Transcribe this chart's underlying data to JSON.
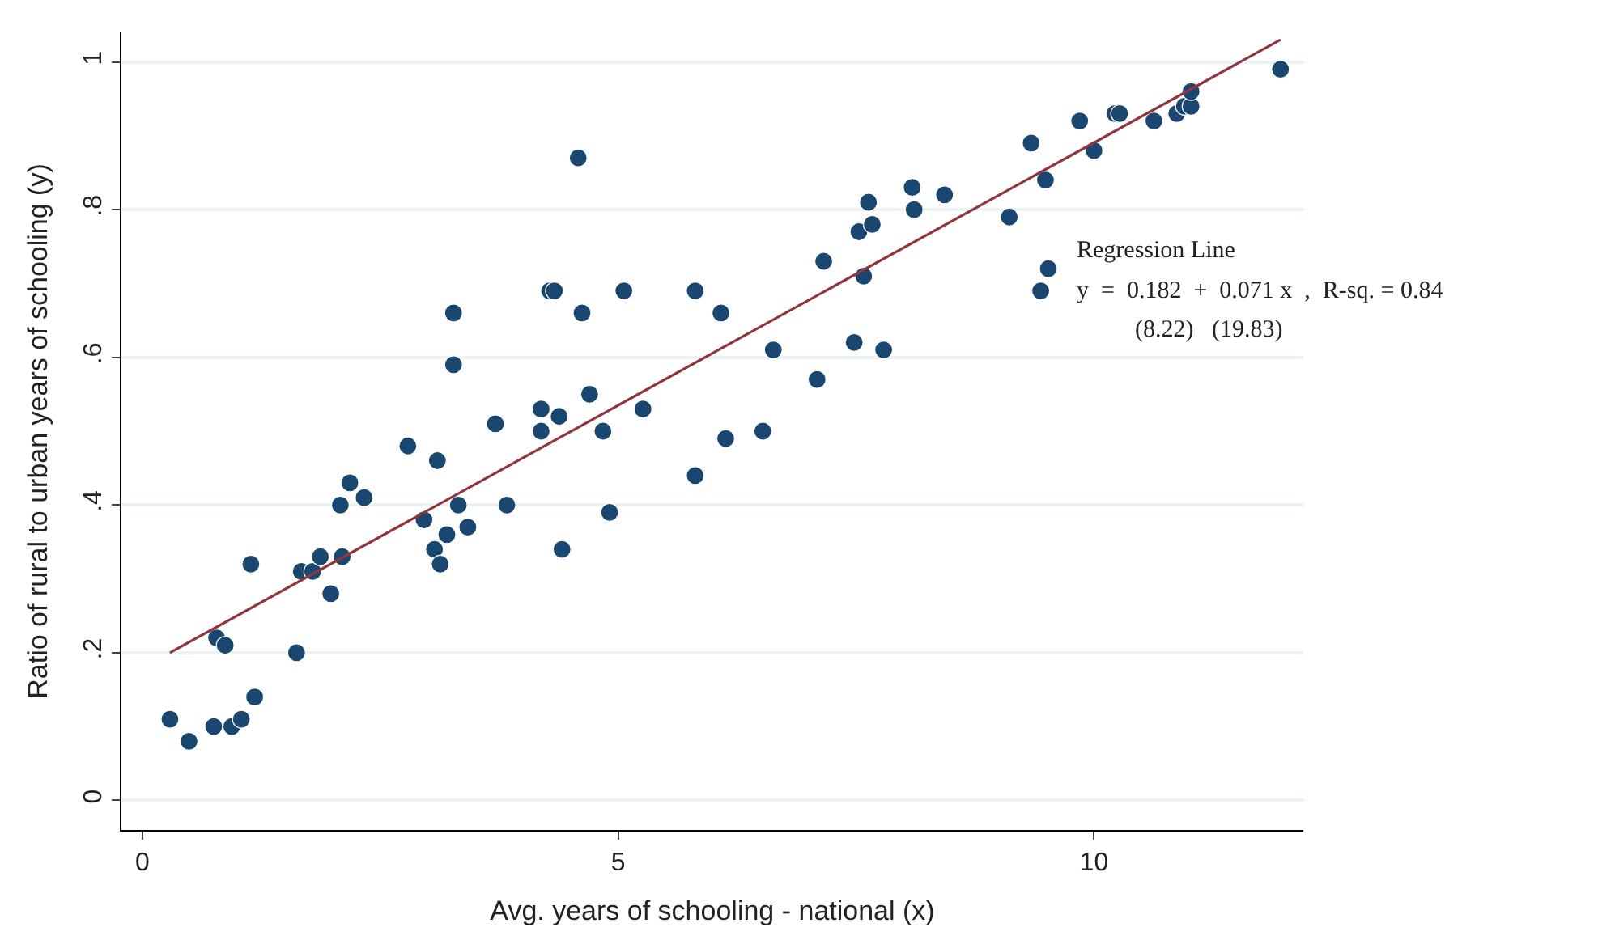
{
  "chart_data": {
    "type": "scatter",
    "xlabel": "Avg. years of schooling - national (x)",
    "ylabel": "Ratio of rural to urban years of schooling (y)",
    "xlim": [
      -0.22,
      12.2
    ],
    "ylim": [
      -0.04,
      1.04
    ],
    "xticks": [
      0,
      5,
      10
    ],
    "yticks": [
      0,
      {
        "value": 0.2,
        "label": ".2"
      },
      {
        "value": 0.4,
        "label": ".4"
      },
      {
        "value": 0.6,
        "label": ".6"
      },
      {
        "value": 0.8,
        "label": ".8"
      },
      1
    ],
    "grid": "y",
    "marker": "circle",
    "annotations": [
      "Regression Line",
      "y  =  0.182  +  0.071 x  ,  R-sq. = 0.84",
      "(8.22)   (19.83)"
    ],
    "series": [
      {
        "color": "#1a476f",
        "x": [
          0.29,
          0.49,
          0.78,
          0.87,
          0.75,
          0.94,
          1.04,
          1.14,
          1.18,
          1.62,
          1.67,
          1.79,
          1.87,
          1.98,
          2.08,
          2.1,
          2.18,
          2.33,
          2.79,
          2.96,
          3.07,
          3.1,
          3.13,
          3.2,
          3.27,
          3.27,
          3.32,
          3.42,
          3.71,
          3.83,
          4.19,
          4.19,
          4.28,
          4.33,
          4.38,
          4.41,
          4.58,
          4.62,
          4.7,
          4.84,
          4.91,
          5.06,
          5.26,
          5.81,
          5.81,
          6.08,
          6.13,
          6.63,
          6.52,
          7.09,
          7.16,
          7.48,
          7.53,
          7.58,
          7.63,
          7.67,
          7.79,
          8.09,
          8.11,
          8.43,
          9.11,
          9.34,
          9.44,
          9.49,
          9.52,
          9.85,
          10.0,
          10.22,
          10.27,
          10.63,
          10.87,
          10.95,
          11.02,
          11.02,
          11.96
        ],
        "values": [
          0.11,
          0.08,
          0.22,
          0.21,
          0.1,
          0.1,
          0.11,
          0.32,
          0.14,
          0.2,
          0.31,
          0.31,
          0.33,
          0.28,
          0.4,
          0.33,
          0.43,
          0.41,
          0.48,
          0.38,
          0.34,
          0.46,
          0.32,
          0.36,
          0.66,
          0.59,
          0.4,
          0.37,
          0.51,
          0.4,
          0.53,
          0.5,
          0.69,
          0.69,
          0.52,
          0.34,
          0.87,
          0.66,
          0.55,
          0.5,
          0.39,
          0.69,
          0.53,
          0.44,
          0.69,
          0.66,
          0.49,
          0.61,
          0.5,
          0.57,
          0.73,
          0.62,
          0.77,
          0.71,
          0.81,
          0.78,
          0.61,
          0.83,
          0.8,
          0.82,
          0.79,
          0.89,
          0.69,
          0.84,
          0.72,
          0.92,
          0.88,
          0.93,
          0.93,
          0.92,
          0.93,
          0.94,
          0.94,
          0.96,
          0.99
        ]
      },
      {
        "type": "line",
        "color": "#90353b",
        "x": [
          0.29,
          11.96
        ],
        "values": [
          0.2,
          1.03
        ],
        "marker": "none"
      }
    ]
  }
}
